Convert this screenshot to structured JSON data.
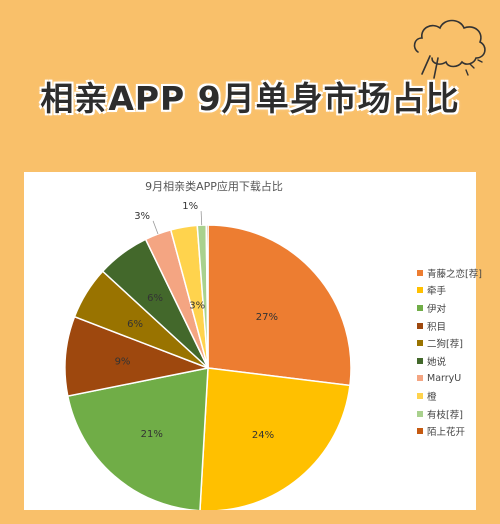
{
  "banner": {
    "title": "相亲APP 9月单身市场占比"
  },
  "chart_data": {
    "type": "pie",
    "title": "9月相亲类APP应用下载占比",
    "slices": [
      {
        "name": "青藤之恋[荐]",
        "value": 27,
        "label": "27%",
        "color": "#ed7d31"
      },
      {
        "name": "牵手",
        "value": 24,
        "label": "24%",
        "color": "#ffc000"
      },
      {
        "name": "伊对",
        "value": 21,
        "label": "21%",
        "color": "#70ad47"
      },
      {
        "name": "积目",
        "value": 9,
        "label": "9%",
        "color": "#9e480e"
      },
      {
        "name": "二狗[荐]",
        "value": 6,
        "label": "6%",
        "color": "#997300"
      },
      {
        "name": "她说",
        "value": 6,
        "label": "6%",
        "color": "#43682b"
      },
      {
        "name": "MarryU",
        "value": 3,
        "label": "3%",
        "color": "#f4a582"
      },
      {
        "name": "橙",
        "value": 3,
        "label": "3%",
        "color": "#ffd34d"
      },
      {
        "name": "有枝[荐]",
        "value": 1,
        "label": "1%",
        "color": "#a9d18e"
      },
      {
        "name": "陌上花开",
        "value": 0.2,
        "label": "",
        "color": "#c55a11"
      }
    ],
    "legend_position": "right"
  }
}
